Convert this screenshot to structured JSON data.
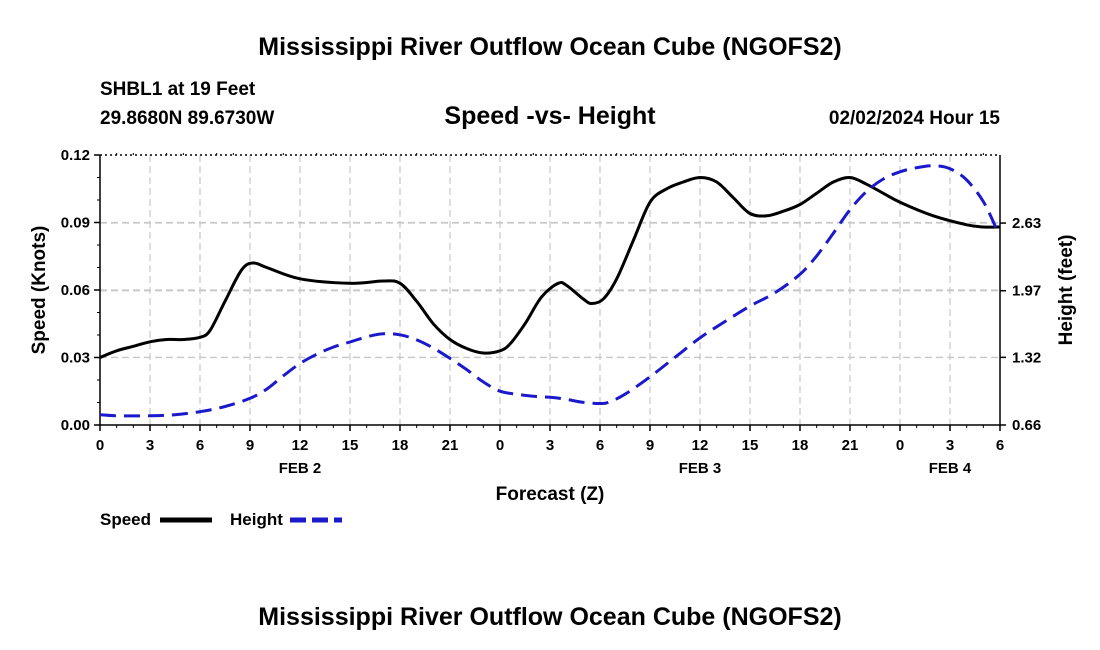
{
  "header": {
    "title": "Mississippi River Outflow Ocean Cube (NGOFS2)",
    "station": "SHBL1 at 19 Feet",
    "location": "29.8680N  89.6730W",
    "subtitle": "Speed -vs- Height",
    "datetime": "02/02/2024 Hour 15"
  },
  "footer": {
    "title": "Mississippi River Outflow Ocean Cube (NGOFS2)"
  },
  "chart_data": {
    "type": "line",
    "title": "Speed -vs- Height",
    "xlabel": "Forecast (Z)",
    "ylabel_left": "Speed (Knots)",
    "ylabel_right": "Height (feet)",
    "x_range_hours": [
      0,
      54
    ],
    "x_ticks": [
      {
        "hour": 0,
        "label": "0"
      },
      {
        "hour": 3,
        "label": "3"
      },
      {
        "hour": 6,
        "label": "6"
      },
      {
        "hour": 9,
        "label": "9"
      },
      {
        "hour": 12,
        "label": "12"
      },
      {
        "hour": 15,
        "label": "15"
      },
      {
        "hour": 18,
        "label": "18"
      },
      {
        "hour": 21,
        "label": "21"
      },
      {
        "hour": 24,
        "label": "0"
      },
      {
        "hour": 27,
        "label": "3"
      },
      {
        "hour": 30,
        "label": "6"
      },
      {
        "hour": 33,
        "label": "9"
      },
      {
        "hour": 36,
        "label": "12"
      },
      {
        "hour": 39,
        "label": "15"
      },
      {
        "hour": 42,
        "label": "18"
      },
      {
        "hour": 45,
        "label": "21"
      },
      {
        "hour": 48,
        "label": "0"
      },
      {
        "hour": 51,
        "label": "3"
      },
      {
        "hour": 54,
        "label": "6"
      }
    ],
    "date_labels": [
      {
        "hour": 12,
        "label": "FEB 2"
      },
      {
        "hour": 36,
        "label": "FEB 3"
      },
      {
        "hour": 51,
        "label": "FEB 4"
      }
    ],
    "y_left": {
      "range": [
        0,
        0.12
      ],
      "ticks": [
        {
          "value": 0,
          "label": "0.00"
        },
        {
          "value": 0.03,
          "label": "0.03"
        },
        {
          "value": 0.06,
          "label": "0.06"
        },
        {
          "value": 0.09,
          "label": "0.09"
        },
        {
          "value": 0.12,
          "label": "0.12"
        }
      ]
    },
    "y_right": {
      "range": [
        0.66,
        3.294
      ],
      "ticks": [
        {
          "value": 0.66,
          "label": "0.66"
        },
        {
          "value": 1.32,
          "label": "1.32"
        },
        {
          "value": 1.97,
          "label": "1.97"
        },
        {
          "value": 2.63,
          "label": "2.63"
        }
      ]
    },
    "series": [
      {
        "name": "Speed",
        "axis": "left",
        "color": "#000000",
        "style": "solid",
        "points": [
          [
            0,
            0.03
          ],
          [
            1,
            0.033
          ],
          [
            2,
            0.035
          ],
          [
            3,
            0.037
          ],
          [
            4,
            0.038
          ],
          [
            5,
            0.038
          ],
          [
            6,
            0.039
          ],
          [
            6.6,
            0.042
          ],
          [
            7.5,
            0.055
          ],
          [
            8.5,
            0.069
          ],
          [
            9.2,
            0.072
          ],
          [
            10,
            0.07
          ],
          [
            12,
            0.065
          ],
          [
            15,
            0.063
          ],
          [
            17,
            0.064
          ],
          [
            18,
            0.063
          ],
          [
            19,
            0.055
          ],
          [
            20,
            0.045
          ],
          [
            21,
            0.038
          ],
          [
            22,
            0.034
          ],
          [
            23,
            0.032
          ],
          [
            24,
            0.033
          ],
          [
            24.6,
            0.036
          ],
          [
            25.5,
            0.045
          ],
          [
            26.5,
            0.057
          ],
          [
            27.5,
            0.063
          ],
          [
            28,
            0.062
          ],
          [
            29,
            0.056
          ],
          [
            29.5,
            0.054
          ],
          [
            30.2,
            0.056
          ],
          [
            31,
            0.065
          ],
          [
            32,
            0.082
          ],
          [
            33,
            0.099
          ],
          [
            34,
            0.105
          ],
          [
            35,
            0.108
          ],
          [
            36,
            0.11
          ],
          [
            37,
            0.108
          ],
          [
            38,
            0.101
          ],
          [
            39,
            0.094
          ],
          [
            40,
            0.093
          ],
          [
            41,
            0.095
          ],
          [
            42,
            0.098
          ],
          [
            43,
            0.103
          ],
          [
            44,
            0.108
          ],
          [
            45,
            0.11
          ],
          [
            46,
            0.107
          ],
          [
            47,
            0.103
          ],
          [
            48,
            0.099
          ],
          [
            50,
            0.093
          ],
          [
            52,
            0.089
          ],
          [
            53,
            0.088
          ],
          [
            54,
            0.088
          ]
        ]
      },
      {
        "name": "Height",
        "axis": "right",
        "color": "#1a1acc",
        "style": "dashed",
        "points": [
          [
            0,
            0.76
          ],
          [
            1,
            0.75
          ],
          [
            3,
            0.75
          ],
          [
            4.5,
            0.76
          ],
          [
            6,
            0.79
          ],
          [
            7.5,
            0.84
          ],
          [
            9,
            0.92
          ],
          [
            10,
            1.01
          ],
          [
            11,
            1.14
          ],
          [
            12,
            1.26
          ],
          [
            13,
            1.35
          ],
          [
            14,
            1.42
          ],
          [
            15,
            1.47
          ],
          [
            16,
            1.52
          ],
          [
            17,
            1.55
          ],
          [
            18,
            1.54
          ],
          [
            19,
            1.49
          ],
          [
            20,
            1.41
          ],
          [
            21,
            1.31
          ],
          [
            22,
            1.2
          ],
          [
            23,
            1.08
          ],
          [
            24,
            0.99
          ],
          [
            25,
            0.96
          ],
          [
            26,
            0.94
          ],
          [
            27,
            0.93
          ],
          [
            28,
            0.91
          ],
          [
            29,
            0.88
          ],
          [
            30,
            0.87
          ],
          [
            30.5,
            0.88
          ],
          [
            31.5,
            0.96
          ],
          [
            33,
            1.13
          ],
          [
            34.5,
            1.32
          ],
          [
            36,
            1.51
          ],
          [
            37.5,
            1.67
          ],
          [
            39,
            1.82
          ],
          [
            40.5,
            1.95
          ],
          [
            42,
            2.13
          ],
          [
            43,
            2.31
          ],
          [
            44,
            2.53
          ],
          [
            45,
            2.76
          ],
          [
            46,
            2.94
          ],
          [
            47,
            3.06
          ],
          [
            48,
            3.13
          ],
          [
            49,
            3.17
          ],
          [
            50,
            3.19
          ],
          [
            51,
            3.16
          ],
          [
            52,
            3.05
          ],
          [
            53,
            2.84
          ],
          [
            53.8,
            2.57
          ]
        ]
      }
    ],
    "legend": [
      {
        "label": "Speed",
        "color": "#000000",
        "style": "solid"
      },
      {
        "label": "Height",
        "color": "#1a1acc",
        "style": "dashed"
      }
    ],
    "legend_position": "bottom-left",
    "grid": true
  }
}
